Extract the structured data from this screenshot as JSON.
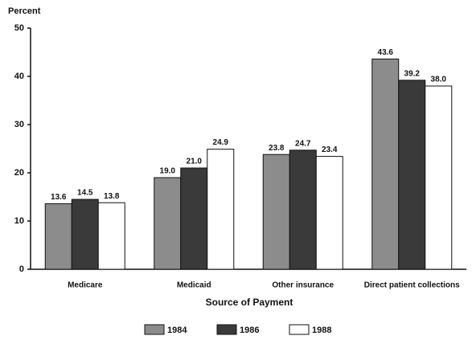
{
  "chart_data": {
    "type": "bar",
    "ylabel": "Percent",
    "xlabel": "Source of Payment",
    "categories": [
      "Medicare",
      "Medicaid",
      "Other insurance",
      "Direct patient collections"
    ],
    "series": [
      {
        "name": "1984",
        "color": "#8c8c8c",
        "values": [
          13.6,
          19.0,
          23.8,
          43.6
        ],
        "value_labels": [
          "13.6",
          "19.0",
          "23.8",
          "43.6"
        ]
      },
      {
        "name": "1986",
        "color": "#3a3a3a",
        "values": [
          14.5,
          21.0,
          24.7,
          39.2
        ],
        "value_labels": [
          "14.5",
          "21.0",
          "24.7",
          "39.2"
        ]
      },
      {
        "name": "1988",
        "color": "#ffffff",
        "values": [
          13.8,
          24.9,
          23.4,
          38.0
        ],
        "value_labels": [
          "13.8",
          "24.9",
          "23.4",
          "38.0"
        ]
      }
    ],
    "ylim": [
      0,
      50
    ],
    "yticks": [
      0,
      10,
      20,
      30,
      40,
      50
    ],
    "legend": "bottom"
  }
}
